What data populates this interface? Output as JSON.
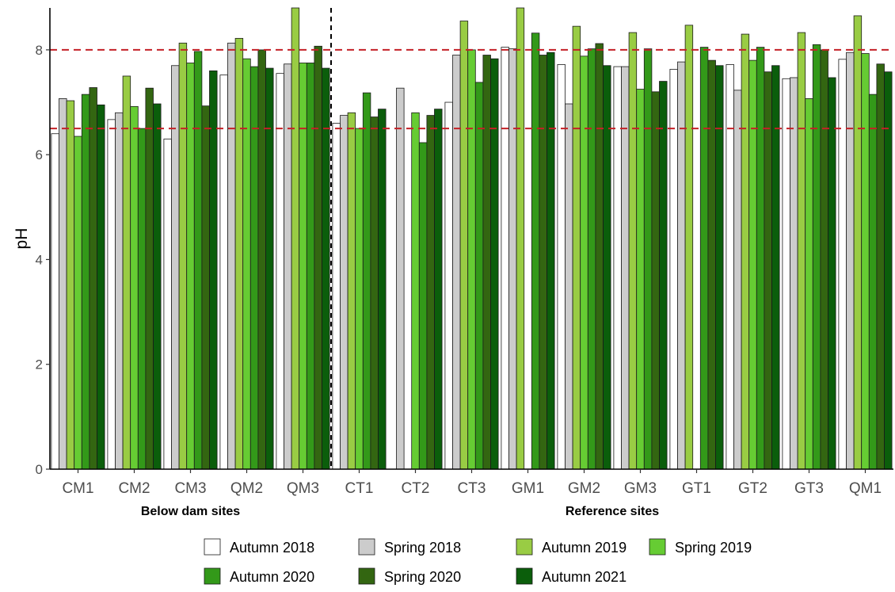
{
  "chart_data": {
    "type": "bar",
    "ylabel": "pH",
    "xlabel": "",
    "ylim": [
      0,
      8.8
    ],
    "yticks": [
      0,
      2,
      4,
      6,
      8
    ],
    "grid": false,
    "legend_position": "bottom",
    "categories": [
      "CM1",
      "CM2",
      "CM3",
      "QM2",
      "QM3",
      "CT1",
      "CT2",
      "CT3",
      "GM1",
      "GM2",
      "GM3",
      "GT1",
      "GT2",
      "GT3",
      "QM1"
    ],
    "groups": [
      {
        "label": "Below dam sites",
        "categories": [
          "CM1",
          "CM2",
          "CM3",
          "QM2",
          "QM3"
        ]
      },
      {
        "label": "Reference sites",
        "categories": [
          "CT1",
          "CT2",
          "CT3",
          "GM1",
          "GM2",
          "GM3",
          "GT1",
          "GT2",
          "GT3",
          "QM1"
        ]
      }
    ],
    "reference_lines": [
      {
        "y": 8.0,
        "color": "#c42127",
        "style": "dashed"
      },
      {
        "y": 6.5,
        "color": "#c42127",
        "style": "dashed"
      }
    ],
    "separator_after_category": "QM3",
    "series": [
      {
        "name": "Autumn 2018",
        "color": "#ffffff",
        "values": [
          6.4,
          6.67,
          6.3,
          7.52,
          7.55,
          6.6,
          null,
          7.0,
          8.05,
          7.72,
          7.68,
          7.63,
          7.72,
          7.45,
          7.82
        ]
      },
      {
        "name": "Spring 2018",
        "color": "#cccccc",
        "values": [
          7.07,
          6.8,
          7.7,
          8.13,
          7.73,
          6.75,
          7.27,
          7.9,
          8.02,
          6.97,
          7.68,
          7.77,
          7.23,
          7.47,
          7.95
        ]
      },
      {
        "name": "Autumn 2019",
        "color": "#99cc44",
        "values": [
          7.03,
          7.5,
          8.13,
          8.22,
          8.8,
          6.8,
          null,
          8.55,
          8.8,
          8.45,
          8.33,
          8.47,
          8.3,
          8.33,
          8.65
        ]
      },
      {
        "name": "Spring 2019",
        "color": "#66cc33",
        "values": [
          6.35,
          6.92,
          7.75,
          7.83,
          7.75,
          6.5,
          6.8,
          8.0,
          null,
          7.88,
          7.25,
          null,
          7.8,
          7.07,
          7.93
        ]
      },
      {
        "name": "Autumn 2020",
        "color": "#339919",
        "values": [
          7.15,
          6.5,
          7.97,
          7.68,
          7.75,
          7.18,
          6.23,
          7.38,
          8.32,
          8.02,
          8.02,
          8.05,
          8.05,
          8.1,
          7.15
        ]
      },
      {
        "name": "Spring 2020",
        "color": "#336611",
        "values": [
          7.28,
          7.27,
          6.93,
          8.0,
          8.07,
          6.72,
          6.75,
          7.9,
          7.9,
          8.12,
          7.2,
          7.8,
          7.58,
          8.0,
          7.73
        ]
      },
      {
        "name": "Autumn 2021",
        "color": "#0b5e0b",
        "values": [
          6.95,
          6.97,
          7.6,
          7.65,
          7.65,
          6.87,
          6.87,
          7.83,
          7.95,
          7.7,
          7.4,
          7.7,
          7.7,
          7.47,
          7.58
        ]
      }
    ]
  }
}
